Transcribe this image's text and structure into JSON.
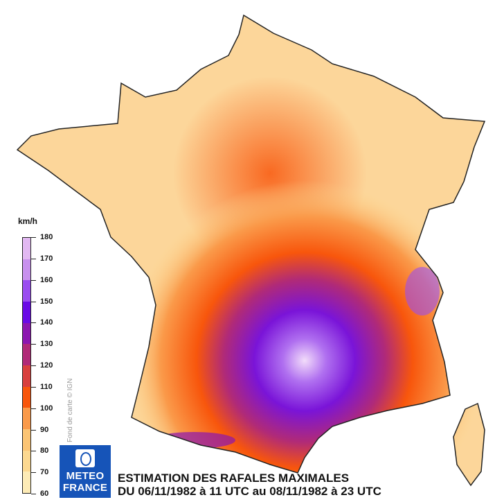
{
  "legend": {
    "unit": "km/h",
    "ticks": [
      180,
      170,
      160,
      150,
      140,
      130,
      120,
      110,
      100,
      90,
      80,
      70,
      60
    ],
    "colors": [
      "#e2b8f2",
      "#c890ee",
      "#9a4cf0",
      "#6a0ae6",
      "#8c16b0",
      "#b02a78",
      "#d8403e",
      "#f8560c",
      "#fa9a4a",
      "#fbc474",
      "#fcd890",
      "#fdebb6"
    ]
  },
  "credit": "Fond de carte © IGN",
  "logo": {
    "line1": "METEO",
    "line2": "FRANCE"
  },
  "title": {
    "line1": "ESTIMATION DES RAFALES MAXIMALES",
    "line2": "DU 06/11/1982 à 11 UTC au 08/11/1982 à 23 UTC"
  }
}
